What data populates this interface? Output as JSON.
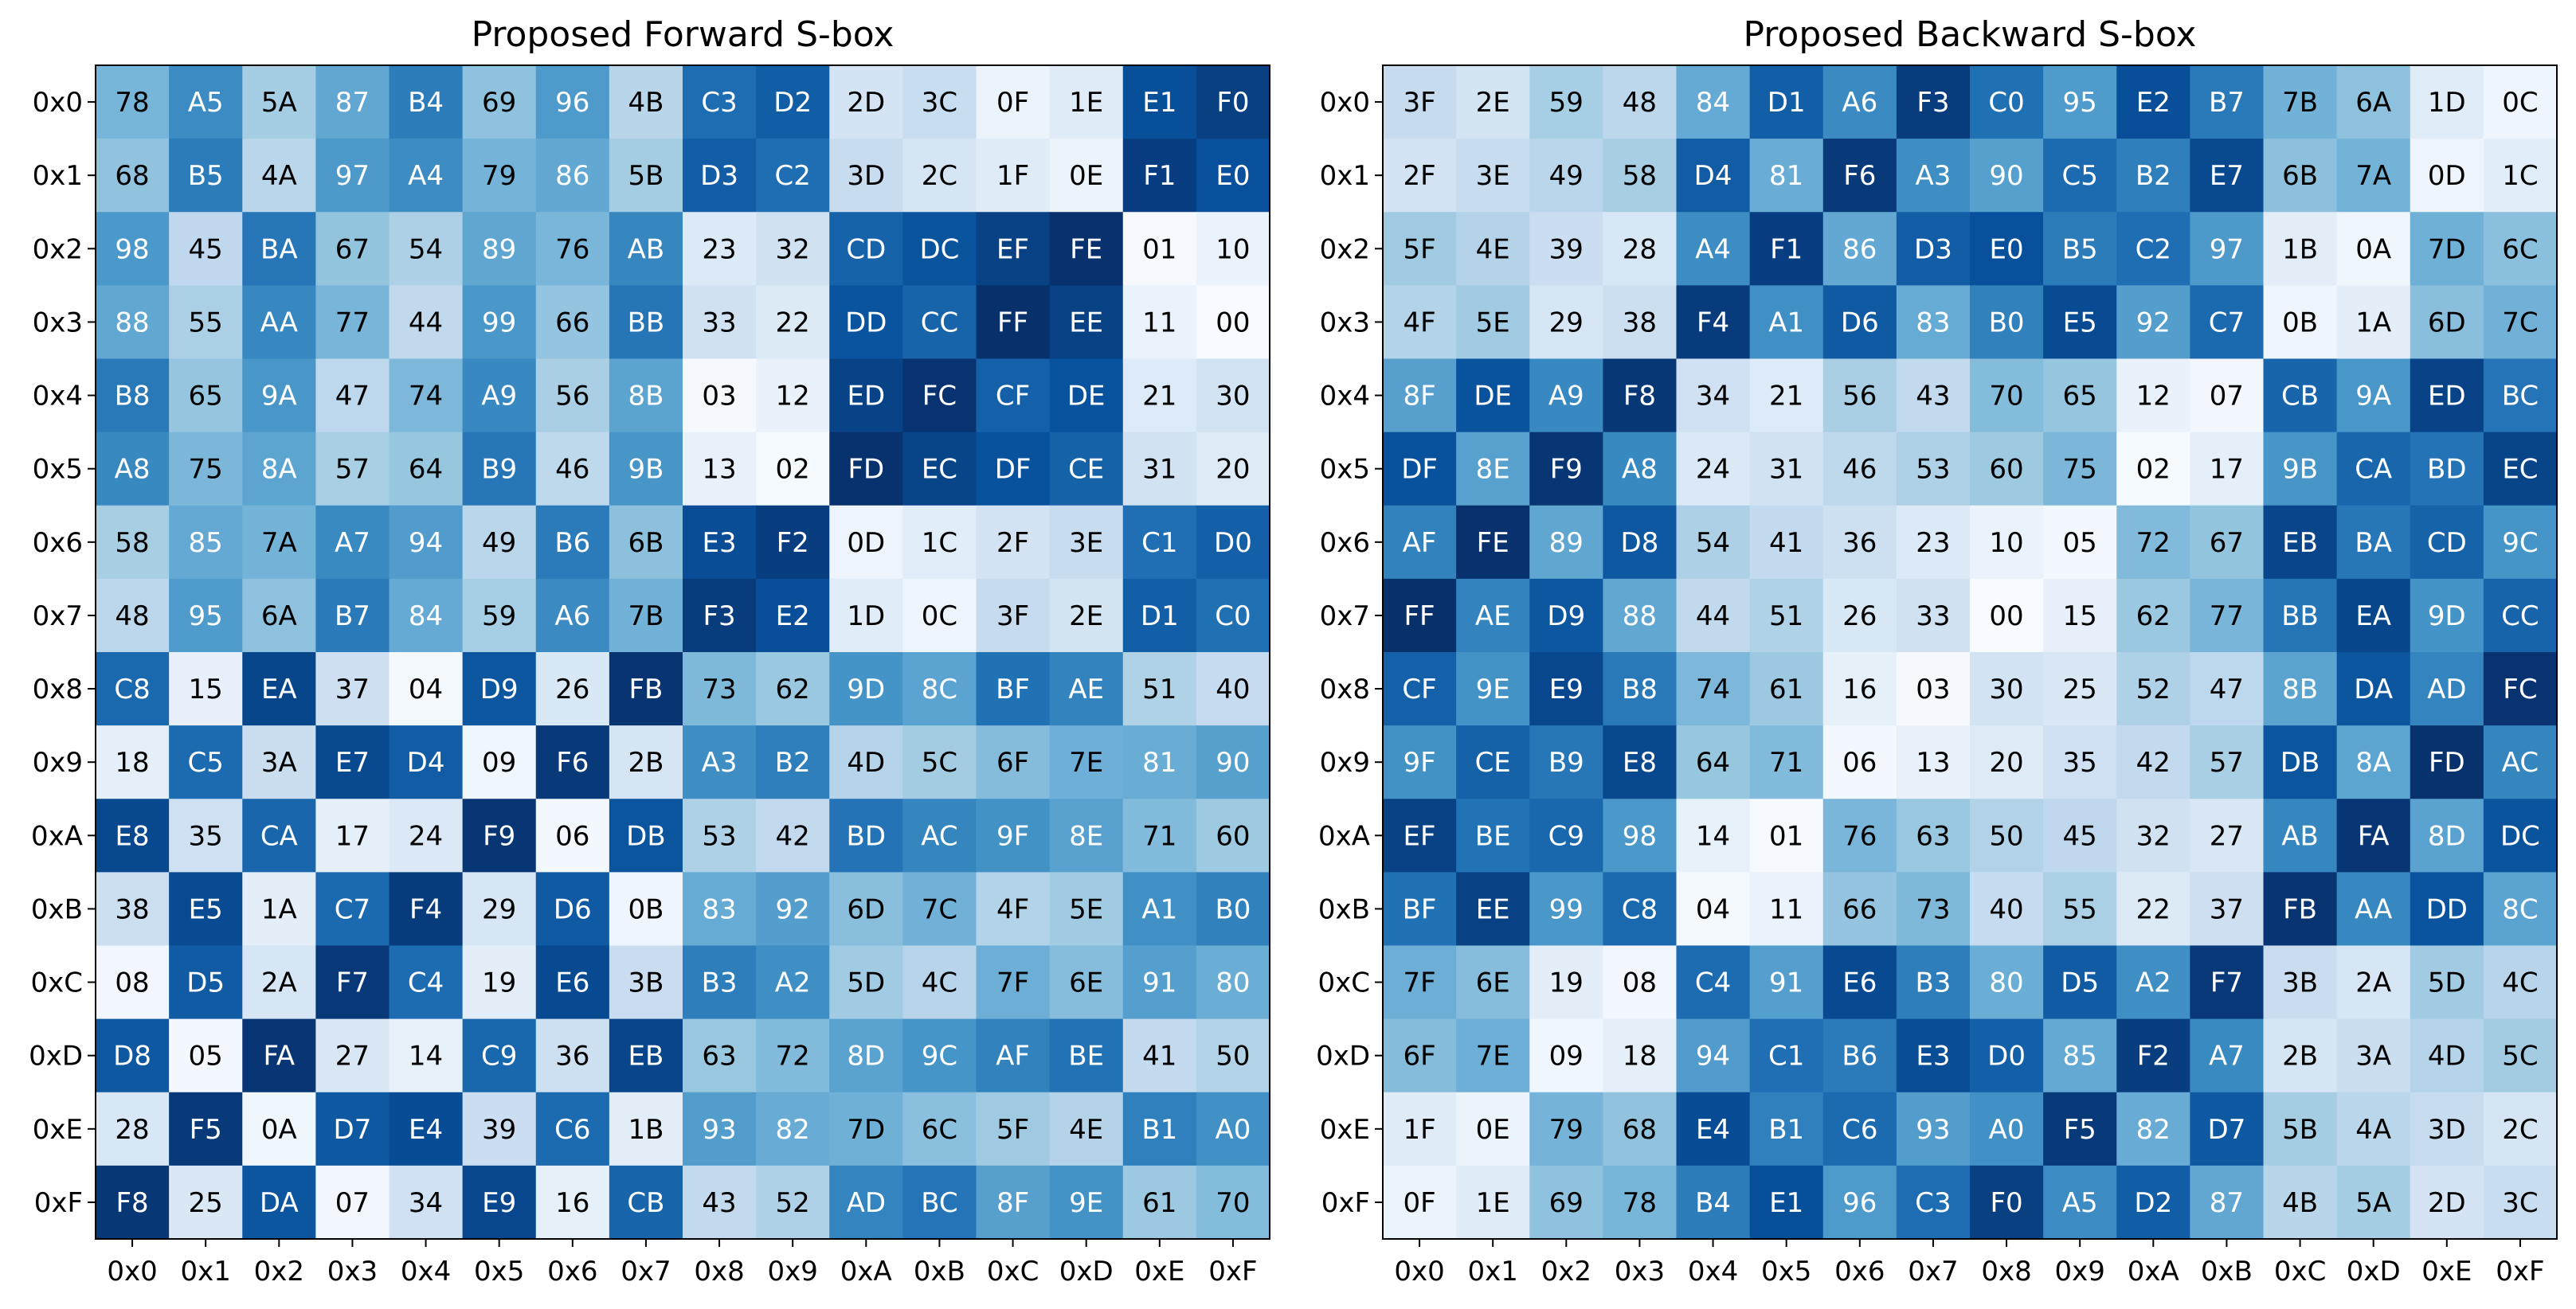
{
  "chart_data": [
    {
      "type": "heatmap",
      "title": "Proposed Forward S-box",
      "colormap": "Blues",
      "x_tick_labels": [
        "0x0",
        "0x1",
        "0x2",
        "0x3",
        "0x4",
        "0x5",
        "0x6",
        "0x7",
        "0x8",
        "0x9",
        "0xA",
        "0xB",
        "0xC",
        "0xD",
        "0xE",
        "0xF"
      ],
      "y_tick_labels": [
        "0x0",
        "0x1",
        "0x2",
        "0x3",
        "0x4",
        "0x5",
        "0x6",
        "0x7",
        "0x8",
        "0x9",
        "0xA",
        "0xB",
        "0xC",
        "0xD",
        "0xE",
        "0xF"
      ],
      "value_range": [
        0,
        255
      ],
      "rows": [
        [
          "78",
          "A5",
          "5A",
          "87",
          "B4",
          "69",
          "96",
          "4B",
          "C3",
          "D2",
          "2D",
          "3C",
          "0F",
          "1E",
          "E1",
          "F0"
        ],
        [
          "68",
          "B5",
          "4A",
          "97",
          "A4",
          "79",
          "86",
          "5B",
          "D3",
          "C2",
          "3D",
          "2C",
          "1F",
          "0E",
          "F1",
          "E0"
        ],
        [
          "98",
          "45",
          "BA",
          "67",
          "54",
          "89",
          "76",
          "AB",
          "23",
          "32",
          "CD",
          "DC",
          "EF",
          "FE",
          "01",
          "10"
        ],
        [
          "88",
          "55",
          "AA",
          "77",
          "44",
          "99",
          "66",
          "BB",
          "33",
          "22",
          "DD",
          "CC",
          "FF",
          "EE",
          "11",
          "00"
        ],
        [
          "B8",
          "65",
          "9A",
          "47",
          "74",
          "A9",
          "56",
          "8B",
          "03",
          "12",
          "ED",
          "FC",
          "CF",
          "DE",
          "21",
          "30"
        ],
        [
          "A8",
          "75",
          "8A",
          "57",
          "64",
          "B9",
          "46",
          "9B",
          "13",
          "02",
          "FD",
          "EC",
          "DF",
          "CE",
          "31",
          "20"
        ],
        [
          "58",
          "85",
          "7A",
          "A7",
          "94",
          "49",
          "B6",
          "6B",
          "E3",
          "F2",
          "0D",
          "1C",
          "2F",
          "3E",
          "C1",
          "D0"
        ],
        [
          "48",
          "95",
          "6A",
          "B7",
          "84",
          "59",
          "A6",
          "7B",
          "F3",
          "E2",
          "1D",
          "0C",
          "3F",
          "2E",
          "D1",
          "C0"
        ],
        [
          "C8",
          "15",
          "EA",
          "37",
          "04",
          "D9",
          "26",
          "FB",
          "73",
          "62",
          "9D",
          "8C",
          "BF",
          "AE",
          "51",
          "40"
        ],
        [
          "18",
          "C5",
          "3A",
          "E7",
          "D4",
          "09",
          "F6",
          "2B",
          "A3",
          "B2",
          "4D",
          "5C",
          "6F",
          "7E",
          "81",
          "90"
        ],
        [
          "E8",
          "35",
          "CA",
          "17",
          "24",
          "F9",
          "06",
          "DB",
          "53",
          "42",
          "BD",
          "AC",
          "9F",
          "8E",
          "71",
          "60"
        ],
        [
          "38",
          "E5",
          "1A",
          "C7",
          "F4",
          "29",
          "D6",
          "0B",
          "83",
          "92",
          "6D",
          "7C",
          "4F",
          "5E",
          "A1",
          "B0"
        ],
        [
          "08",
          "D5",
          "2A",
          "F7",
          "C4",
          "19",
          "E6",
          "3B",
          "B3",
          "A2",
          "5D",
          "4C",
          "7F",
          "6E",
          "91",
          "80"
        ],
        [
          "D8",
          "05",
          "FA",
          "27",
          "14",
          "C9",
          "36",
          "EB",
          "63",
          "72",
          "8D",
          "9C",
          "AF",
          "BE",
          "41",
          "50"
        ],
        [
          "28",
          "F5",
          "0A",
          "D7",
          "E4",
          "39",
          "C6",
          "1B",
          "93",
          "82",
          "7D",
          "6C",
          "5F",
          "4E",
          "B1",
          "A0"
        ],
        [
          "F8",
          "25",
          "DA",
          "07",
          "34",
          "E9",
          "16",
          "CB",
          "43",
          "52",
          "AD",
          "BC",
          "8F",
          "9E",
          "61",
          "70"
        ]
      ]
    },
    {
      "type": "heatmap",
      "title": "Proposed Backward S-box",
      "colormap": "Blues",
      "x_tick_labels": [
        "0x0",
        "0x1",
        "0x2",
        "0x3",
        "0x4",
        "0x5",
        "0x6",
        "0x7",
        "0x8",
        "0x9",
        "0xA",
        "0xB",
        "0xC",
        "0xD",
        "0xE",
        "0xF"
      ],
      "y_tick_labels": [
        "0x0",
        "0x1",
        "0x2",
        "0x3",
        "0x4",
        "0x5",
        "0x6",
        "0x7",
        "0x8",
        "0x9",
        "0xA",
        "0xB",
        "0xC",
        "0xD",
        "0xE",
        "0xF"
      ],
      "value_range": [
        0,
        255
      ],
      "rows": [
        [
          "3F",
          "2E",
          "59",
          "48",
          "84",
          "D1",
          "A6",
          "F3",
          "C0",
          "95",
          "E2",
          "B7",
          "7B",
          "6A",
          "1D",
          "0C"
        ],
        [
          "2F",
          "3E",
          "49",
          "58",
          "D4",
          "81",
          "F6",
          "A3",
          "90",
          "C5",
          "B2",
          "E7",
          "6B",
          "7A",
          "0D",
          "1C"
        ],
        [
          "5F",
          "4E",
          "39",
          "28",
          "A4",
          "F1",
          "86",
          "D3",
          "E0",
          "B5",
          "C2",
          "97",
          "1B",
          "0A",
          "7D",
          "6C"
        ],
        [
          "4F",
          "5E",
          "29",
          "38",
          "F4",
          "A1",
          "D6",
          "83",
          "B0",
          "E5",
          "92",
          "C7",
          "0B",
          "1A",
          "6D",
          "7C"
        ],
        [
          "8F",
          "DE",
          "A9",
          "F8",
          "34",
          "21",
          "56",
          "43",
          "70",
          "65",
          "12",
          "07",
          "CB",
          "9A",
          "ED",
          "BC"
        ],
        [
          "DF",
          "8E",
          "F9",
          "A8",
          "24",
          "31",
          "46",
          "53",
          "60",
          "75",
          "02",
          "17",
          "9B",
          "CA",
          "BD",
          "EC"
        ],
        [
          "AF",
          "FE",
          "89",
          "D8",
          "54",
          "41",
          "36",
          "23",
          "10",
          "05",
          "72",
          "67",
          "EB",
          "BA",
          "CD",
          "9C"
        ],
        [
          "FF",
          "AE",
          "D9",
          "88",
          "44",
          "51",
          "26",
          "33",
          "00",
          "15",
          "62",
          "77",
          "BB",
          "EA",
          "9D",
          "CC"
        ],
        [
          "CF",
          "9E",
          "E9",
          "B8",
          "74",
          "61",
          "16",
          "03",
          "30",
          "25",
          "52",
          "47",
          "8B",
          "DA",
          "AD",
          "FC"
        ],
        [
          "9F",
          "CE",
          "B9",
          "E8",
          "64",
          "71",
          "06",
          "13",
          "20",
          "35",
          "42",
          "57",
          "DB",
          "8A",
          "FD",
          "AC"
        ],
        [
          "EF",
          "BE",
          "C9",
          "98",
          "14",
          "01",
          "76",
          "63",
          "50",
          "45",
          "32",
          "27",
          "AB",
          "FA",
          "8D",
          "DC"
        ],
        [
          "BF",
          "EE",
          "99",
          "C8",
          "04",
          "11",
          "66",
          "73",
          "40",
          "55",
          "22",
          "37",
          "FB",
          "AA",
          "DD",
          "8C"
        ],
        [
          "7F",
          "6E",
          "19",
          "08",
          "C4",
          "91",
          "E6",
          "B3",
          "80",
          "D5",
          "A2",
          "F7",
          "3B",
          "2A",
          "5D",
          "4C"
        ],
        [
          "6F",
          "7E",
          "09",
          "18",
          "94",
          "C1",
          "B6",
          "E3",
          "D0",
          "85",
          "F2",
          "A7",
          "2B",
          "3A",
          "4D",
          "5C"
        ],
        [
          "1F",
          "0E",
          "79",
          "68",
          "E4",
          "B1",
          "C6",
          "93",
          "A0",
          "F5",
          "82",
          "D7",
          "5B",
          "4A",
          "3D",
          "2C"
        ],
        [
          "0F",
          "1E",
          "69",
          "78",
          "B4",
          "E1",
          "96",
          "C3",
          "F0",
          "A5",
          "D2",
          "87",
          "4B",
          "5A",
          "2D",
          "3C"
        ]
      ]
    }
  ]
}
